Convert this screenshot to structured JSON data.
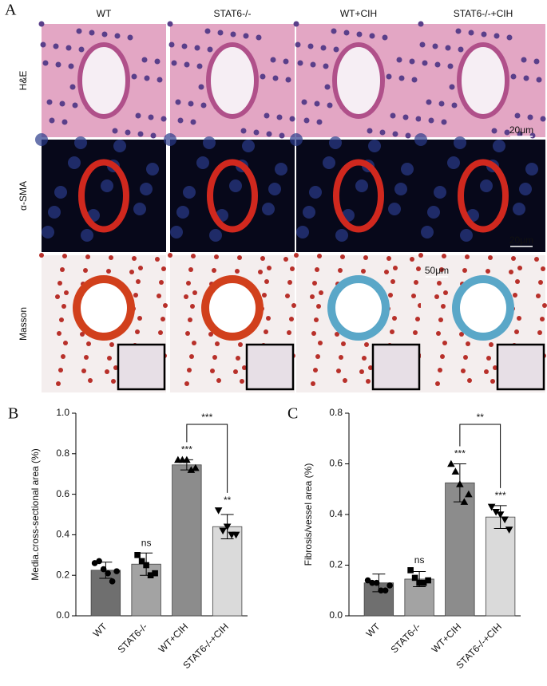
{
  "panel_a": {
    "label": "A",
    "columns": [
      "WT",
      "STAT6-/-",
      "WT+CIH",
      "STAT6-/-+CIH"
    ],
    "rows": [
      "H&E",
      "α-SMA",
      "Masson"
    ],
    "scale_bars": [
      "20μm",
      "20μm",
      "50μm"
    ]
  },
  "chart_data": [
    {
      "type": "bar",
      "panel": "B",
      "ylabel": "Media.cross-sectional area (%)",
      "categories": [
        "WT",
        "STAT6-/-",
        "WT+CIH",
        "STAT6-/-+CIH"
      ],
      "colors": [
        "#6f6f6f",
        "#a3a3a3",
        "#8c8c8c",
        "#dadada"
      ],
      "values": [
        0.225,
        0.255,
        0.745,
        0.44
      ],
      "errors": [
        0.04,
        0.055,
        0.025,
        0.06
      ],
      "points": [
        [
          0.26,
          0.27,
          0.23,
          0.21,
          0.17,
          0.22
        ],
        [
          0.3,
          0.27,
          0.25,
          0.2,
          0.21
        ],
        [
          0.77,
          0.77,
          0.77,
          0.72,
          0.73
        ],
        [
          0.52,
          0.42,
          0.44,
          0.4,
          0.4
        ]
      ],
      "markers": [
        "circle",
        "square",
        "triangle-up",
        "triangle-down"
      ],
      "ylim": [
        0,
        1
      ],
      "yticks": [
        {
          "value": 0,
          "label": "0.0"
        },
        0.2,
        0.4,
        0.6,
        0.8,
        {
          "value": 1,
          "label": "1.0"
        }
      ],
      "bar_annotations": [
        null,
        "ns",
        "***",
        "**"
      ],
      "comparison": {
        "label": "***",
        "between": [
          "WT+CIH",
          "STAT6-/-+CIH"
        ]
      }
    },
    {
      "type": "bar",
      "panel": "C",
      "ylabel": "Fibrosis/vessel area (%)",
      "categories": [
        "WT",
        "STAT6-/-",
        "WT+CIH",
        "STAT6-/-+CIH"
      ],
      "colors": [
        "#6f6f6f",
        "#a3a3a3",
        "#8c8c8c",
        "#dadada"
      ],
      "values": [
        0.13,
        0.145,
        0.525,
        0.39
      ],
      "errors": [
        0.035,
        0.03,
        0.075,
        0.045
      ],
      "points": [
        [
          0.14,
          0.13,
          0.13,
          0.1,
          0.1,
          0.12
        ],
        [
          0.18,
          0.15,
          0.13,
          0.13,
          0.14
        ],
        [
          0.6,
          0.57,
          0.52,
          0.45,
          0.48
        ],
        [
          0.43,
          0.41,
          0.4,
          0.38,
          0.34
        ]
      ],
      "markers": [
        "circle",
        "square",
        "triangle-up",
        "triangle-down"
      ],
      "ylim": [
        0,
        0.8
      ],
      "yticks": [
        {
          "value": 0,
          "label": "0.0"
        },
        0.2,
        0.4,
        0.6,
        0.8
      ],
      "bar_annotations": [
        null,
        "ns",
        "***",
        "***"
      ],
      "comparison": {
        "label": "**",
        "between": [
          "WT+CIH",
          "STAT6-/-+CIH"
        ]
      }
    }
  ]
}
